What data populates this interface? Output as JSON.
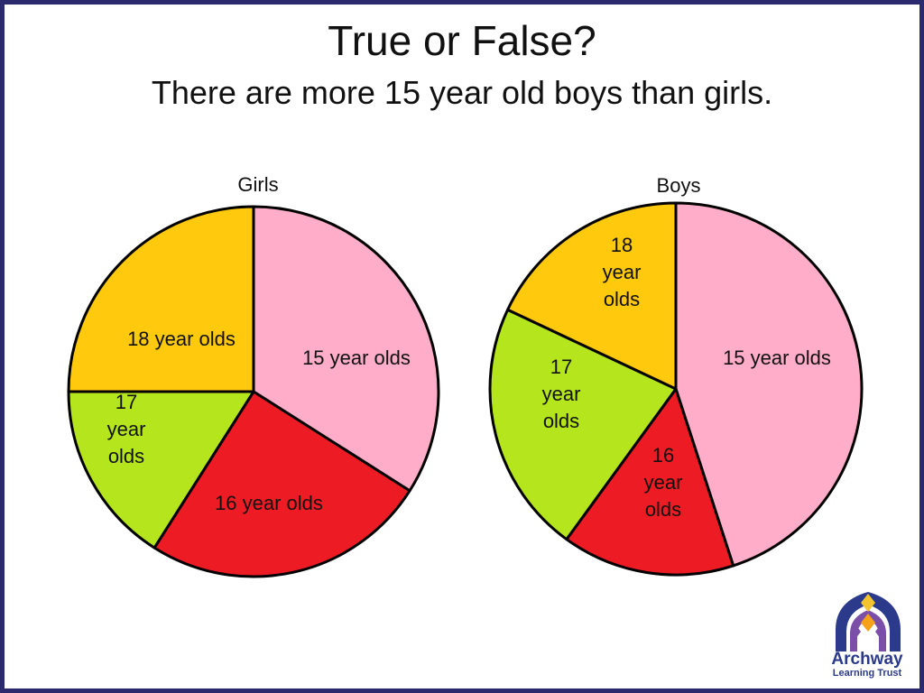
{
  "title": "True or False?",
  "subtitle": "There are more 15 year old boys than girls.",
  "logo": {
    "line1": "Archway",
    "line2": "Learning Trust",
    "colors": {
      "primary": "#2b3a8a",
      "purple": "#7b4ea8",
      "orange": "#f5a11a",
      "gold": "#f2c530"
    }
  },
  "colors": {
    "15 year olds": "#ffadc9",
    "16 year olds": "#ed1c24",
    "17 year olds": "#b5e61d",
    "18 year olds": "#ffc90e",
    "frame": "#2b2a6e"
  },
  "chart_data": [
    {
      "type": "pie",
      "title": "Girls",
      "labels": [
        "15 year olds",
        "16 year olds",
        "17 year olds",
        "18 year olds"
      ],
      "display_labels": [
        "15 year olds",
        "16 year olds",
        "17\nyear\nolds",
        "18 year olds"
      ],
      "values": [
        34,
        25,
        16,
        25
      ],
      "start_angle_deg": 0,
      "direction": "clockwise"
    },
    {
      "type": "pie",
      "title": "Boys",
      "labels": [
        "15 year olds",
        "16 year olds",
        "17 year olds",
        "18 year olds"
      ],
      "display_labels": [
        "15 year olds",
        "16\nyear\nolds",
        "17\nyear\nolds",
        "18\nyear\nolds"
      ],
      "values": [
        45,
        15,
        22,
        18
      ],
      "start_angle_deg": 0,
      "direction": "clockwise"
    }
  ]
}
